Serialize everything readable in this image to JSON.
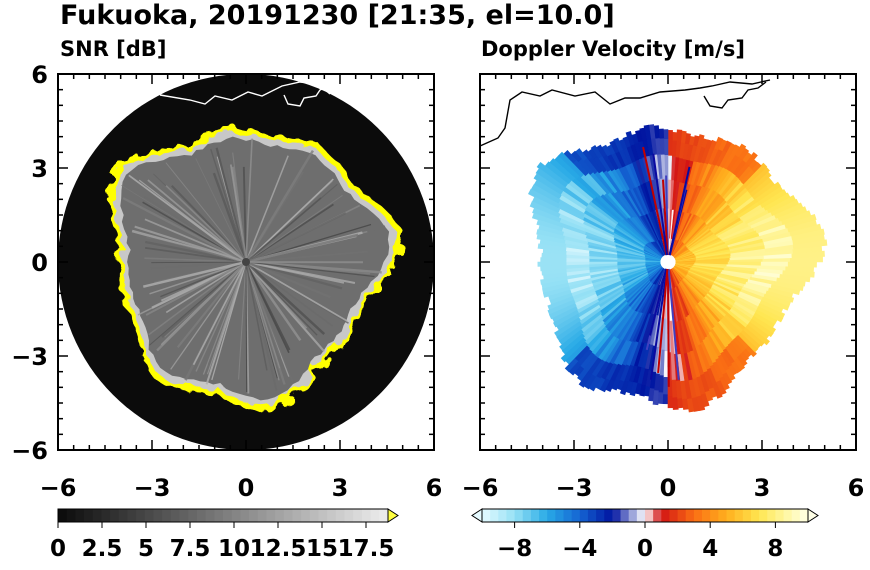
{
  "title": "Fukuoka, 20191230 [21:35, el=10.0]",
  "panels": [
    {
      "title": "SNR [dB]"
    },
    {
      "title": "Doppler Velocity [m/s]"
    }
  ],
  "chart_data": [
    {
      "type": "heatmap",
      "title": "SNR [dB]",
      "xlim": [
        -6,
        6
      ],
      "ylim": [
        -6,
        6
      ],
      "xticks": [
        "−6",
        "−3",
        "0",
        "3",
        "6"
      ],
      "yticks": [
        "6",
        "3",
        "0",
        "−3",
        "−6"
      ],
      "colorbar": {
        "min": 0,
        "max": 18.75,
        "step": 0.5,
        "extend": "max",
        "tick_labels": [
          "0",
          "2.5",
          "5",
          "7.5",
          "10",
          "12.5",
          "15",
          "17.5"
        ],
        "tick_values": [
          0,
          2.5,
          5,
          7.5,
          10,
          12.5,
          15,
          17.5
        ]
      },
      "colors": {
        "background": "#0b0b0b",
        "echo": "#707070",
        "edge": "#ffff00"
      }
    },
    {
      "type": "heatmap",
      "title": "Doppler Velocity [m/s]",
      "xlim": [
        -6,
        6
      ],
      "ylim": [
        -6,
        6
      ],
      "xticks": [
        "−6",
        "−3",
        "0",
        "3",
        "6"
      ],
      "colorbar": {
        "min": -10,
        "max": 10,
        "step": 0.5,
        "extend": "both",
        "tick_labels": [
          "−8",
          "−4",
          "0",
          "4",
          "8"
        ],
        "tick_values": [
          -8,
          -4,
          0,
          4,
          8
        ]
      },
      "colors": {
        "approaching": "#0000a0",
        "zero": "#ffffff",
        "receding": "#cc0000"
      }
    }
  ]
}
